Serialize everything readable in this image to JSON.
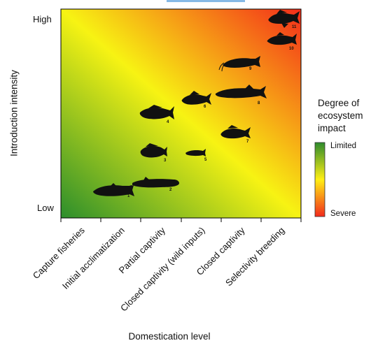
{
  "y_axis": {
    "title": "Introduction intensity",
    "high_label": "High",
    "low_label": "Low"
  },
  "x_axis": {
    "title": "Domestication level",
    "categories": [
      "Capture fisheries",
      "Initial acclimatization",
      "Partial captivity",
      "Closed captivity (wild inputs)",
      "Closed captivity",
      "Selectivity breeding"
    ]
  },
  "legend": {
    "title_lines": [
      "Degree of",
      "ecosystem",
      "impact"
    ],
    "top_label": "Limited",
    "bottom_label": "Severe",
    "colors": {
      "limited": "#2e8b2e",
      "middle": "#ffef14",
      "severe": "#f22a1c"
    }
  },
  "gradient_colors": {
    "low_low": "#2c8e2c",
    "middle": "#f7f313",
    "high_high": "#f42d1a"
  },
  "fish_numbers": [
    "1",
    "2",
    "3",
    "4",
    "5",
    "6",
    "7",
    "8",
    "9",
    "10",
    "11"
  ]
}
